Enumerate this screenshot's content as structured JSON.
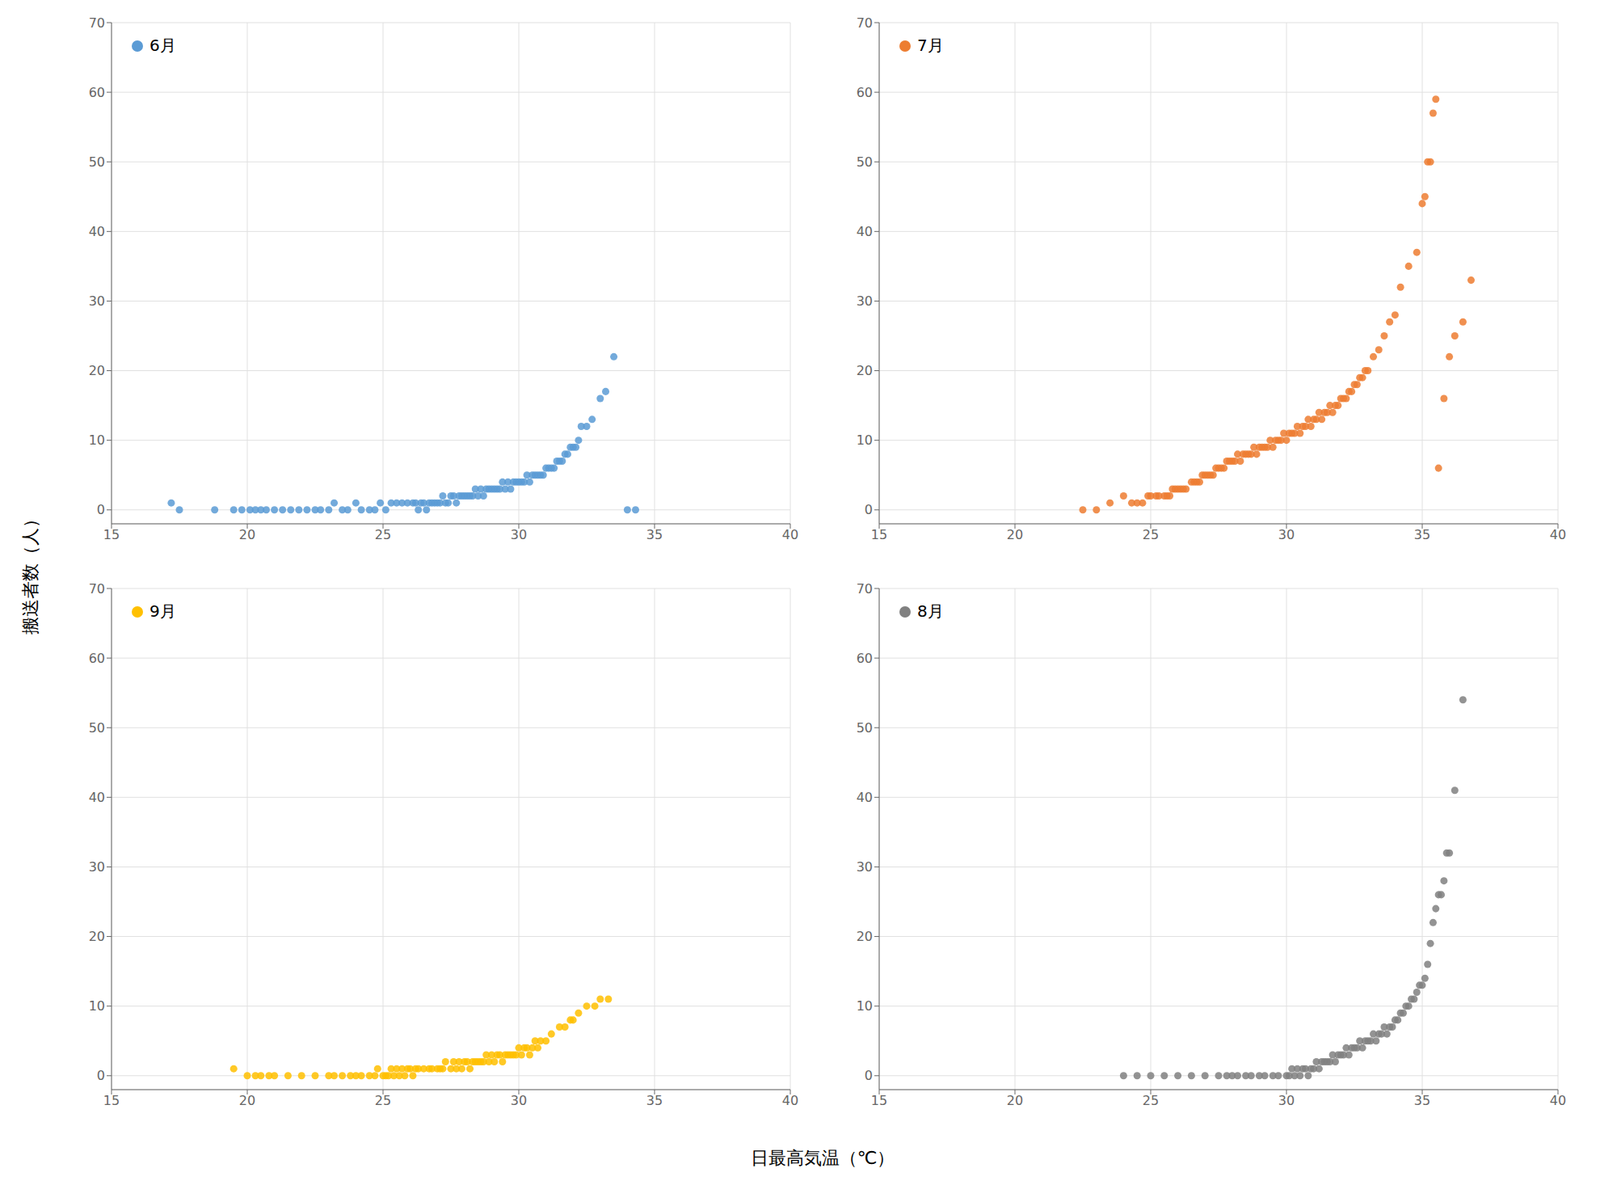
{
  "xlabel": "日最高気温（℃）",
  "ylabel": "搬送者数（人）",
  "chart_data": [
    {
      "type": "scatter",
      "xlim": [
        15,
        40
      ],
      "ylim": [
        -2,
        70
      ],
      "xticks": [
        15,
        20,
        25,
        30,
        35,
        40
      ],
      "yticks": [
        0,
        10,
        20,
        30,
        40,
        50,
        60,
        70
      ],
      "grid": true,
      "legend": "upper left",
      "series": [
        {
          "name": "6月",
          "color": "#5B9BD5",
          "x": [
            17.2,
            17.5,
            18.8,
            19.5,
            19.8,
            20.1,
            20.3,
            20.5,
            20.7,
            21.0,
            21.3,
            21.6,
            21.9,
            22.2,
            22.5,
            22.7,
            23.0,
            23.2,
            23.5,
            23.7,
            24.0,
            24.2,
            24.5,
            24.7,
            24.9,
            25.1,
            25.3,
            25.5,
            25.7,
            25.9,
            26.1,
            26.2,
            26.3,
            26.4,
            26.5,
            26.6,
            26.7,
            26.8,
            26.9,
            27.0,
            27.1,
            27.2,
            27.3,
            27.4,
            27.5,
            27.6,
            27.7,
            27.8,
            27.9,
            28.0,
            28.1,
            28.2,
            28.3,
            28.4,
            28.5,
            28.6,
            28.7,
            28.8,
            28.9,
            29.0,
            29.1,
            29.2,
            29.3,
            29.4,
            29.5,
            29.6,
            29.7,
            29.8,
            29.9,
            30.0,
            30.1,
            30.2,
            30.3,
            30.4,
            30.5,
            30.6,
            30.7,
            30.8,
            30.9,
            31.0,
            31.1,
            31.2,
            31.3,
            31.4,
            31.5,
            31.6,
            31.7,
            31.8,
            31.9,
            32.0,
            32.1,
            32.2,
            32.3,
            32.5,
            32.7,
            33.0,
            33.2,
            33.5,
            34.0,
            34.3
          ],
          "values": [
            1,
            0,
            0,
            0,
            0,
            0,
            0,
            0,
            0,
            0,
            0,
            0,
            0,
            0,
            0,
            0,
            0,
            1,
            0,
            0,
            1,
            0,
            0,
            0,
            1,
            0,
            1,
            1,
            1,
            1,
            1,
            1,
            0,
            1,
            1,
            0,
            1,
            1,
            1,
            1,
            1,
            2,
            1,
            1,
            2,
            2,
            1,
            2,
            2,
            2,
            2,
            2,
            2,
            3,
            2,
            3,
            2,
            3,
            3,
            3,
            3,
            3,
            3,
            4,
            3,
            4,
            3,
            4,
            4,
            4,
            4,
            4,
            5,
            4,
            5,
            5,
            5,
            5,
            5,
            6,
            6,
            6,
            6,
            7,
            7,
            7,
            8,
            8,
            9,
            9,
            9,
            10,
            12,
            12,
            13,
            16,
            17,
            22,
            0,
            0
          ]
        }
      ]
    },
    {
      "type": "scatter",
      "xlim": [
        15,
        40
      ],
      "ylim": [
        -2,
        70
      ],
      "xticks": [
        15,
        20,
        25,
        30,
        35,
        40
      ],
      "yticks": [
        0,
        10,
        20,
        30,
        40,
        50,
        60,
        70
      ],
      "grid": true,
      "legend": "upper left",
      "series": [
        {
          "name": "7月",
          "color": "#ED7D31",
          "x": [
            22.5,
            23.0,
            23.5,
            24.0,
            24.3,
            24.5,
            24.7,
            24.9,
            25.0,
            25.2,
            25.3,
            25.5,
            25.6,
            25.7,
            25.8,
            25.9,
            26.0,
            26.1,
            26.2,
            26.3,
            26.5,
            26.6,
            26.7,
            26.8,
            26.9,
            27.0,
            27.1,
            27.2,
            27.3,
            27.4,
            27.5,
            27.6,
            27.7,
            27.8,
            27.9,
            28.0,
            28.1,
            28.2,
            28.3,
            28.4,
            28.5,
            28.6,
            28.7,
            28.8,
            28.9,
            29.0,
            29.1,
            29.2,
            29.3,
            29.4,
            29.5,
            29.6,
            29.7,
            29.8,
            29.9,
            30.0,
            30.1,
            30.2,
            30.3,
            30.4,
            30.5,
            30.6,
            30.7,
            30.8,
            30.9,
            31.0,
            31.1,
            31.2,
            31.3,
            31.4,
            31.5,
            31.6,
            31.7,
            31.8,
            31.9,
            32.0,
            32.1,
            32.2,
            32.3,
            32.4,
            32.5,
            32.6,
            32.7,
            32.8,
            32.9,
            33.0,
            33.2,
            33.4,
            33.6,
            33.8,
            34.0,
            34.2,
            34.5,
            34.8,
            35.0,
            35.1,
            35.2,
            35.3,
            35.4,
            35.5,
            35.6,
            35.8,
            36.0,
            36.2,
            36.5,
            36.8
          ],
          "values": [
            0,
            0,
            1,
            2,
            1,
            1,
            1,
            2,
            2,
            2,
            2,
            2,
            2,
            2,
            3,
            3,
            3,
            3,
            3,
            3,
            4,
            4,
            4,
            4,
            5,
            5,
            5,
            5,
            5,
            6,
            6,
            6,
            6,
            7,
            7,
            7,
            7,
            8,
            7,
            8,
            8,
            8,
            8,
            9,
            8,
            9,
            9,
            9,
            9,
            10,
            9,
            10,
            10,
            10,
            11,
            10,
            11,
            11,
            11,
            12,
            11,
            12,
            12,
            13,
            12,
            13,
            13,
            14,
            13,
            14,
            14,
            15,
            14,
            15,
            15,
            16,
            16,
            16,
            17,
            17,
            18,
            18,
            19,
            19,
            20,
            20,
            22,
            23,
            25,
            27,
            28,
            32,
            35,
            37,
            44,
            45,
            50,
            50,
            57,
            59,
            6,
            16,
            22,
            25,
            27,
            33
          ]
        }
      ]
    },
    {
      "type": "scatter",
      "xlim": [
        15,
        40
      ],
      "ylim": [
        -2,
        70
      ],
      "xticks": [
        15,
        20,
        25,
        30,
        35,
        40
      ],
      "yticks": [
        0,
        10,
        20,
        30,
        40,
        50,
        60,
        70
      ],
      "grid": true,
      "legend": "upper left",
      "series": [
        {
          "name": "9月",
          "color": "#FFC000",
          "x": [
            19.5,
            20.0,
            20.3,
            20.5,
            20.8,
            21.0,
            21.5,
            22.0,
            22.5,
            23.0,
            23.2,
            23.5,
            23.8,
            24.0,
            24.2,
            24.5,
            24.7,
            24.8,
            25.0,
            25.1,
            25.2,
            25.3,
            25.4,
            25.5,
            25.6,
            25.7,
            25.8,
            25.9,
            26.0,
            26.1,
            26.2,
            26.3,
            26.5,
            26.7,
            26.8,
            27.0,
            27.1,
            27.2,
            27.3,
            27.5,
            27.6,
            27.7,
            27.8,
            27.9,
            28.0,
            28.1,
            28.2,
            28.3,
            28.4,
            28.5,
            28.6,
            28.7,
            28.8,
            28.9,
            29.0,
            29.1,
            29.2,
            29.3,
            29.4,
            29.5,
            29.6,
            29.7,
            29.8,
            29.9,
            30.0,
            30.1,
            30.2,
            30.3,
            30.4,
            30.5,
            30.6,
            30.7,
            30.8,
            31.0,
            31.2,
            31.5,
            31.7,
            31.9,
            32.0,
            32.2,
            32.5,
            32.8,
            33.0,
            33.3
          ],
          "values": [
            1,
            0,
            0,
            0,
            0,
            0,
            0,
            0,
            0,
            0,
            0,
            0,
            0,
            0,
            0,
            0,
            0,
            1,
            0,
            0,
            0,
            1,
            0,
            1,
            0,
            1,
            0,
            1,
            1,
            0,
            1,
            1,
            1,
            1,
            1,
            1,
            1,
            1,
            2,
            1,
            2,
            1,
            2,
            1,
            2,
            2,
            1,
            2,
            2,
            2,
            2,
            2,
            3,
            2,
            3,
            2,
            3,
            3,
            2,
            3,
            3,
            3,
            3,
            3,
            4,
            3,
            4,
            4,
            3,
            4,
            5,
            4,
            5,
            5,
            6,
            7,
            7,
            8,
            8,
            9,
            10,
            10,
            11,
            11
          ]
        }
      ]
    },
    {
      "type": "scatter",
      "xlim": [
        15,
        40
      ],
      "ylim": [
        -2,
        70
      ],
      "xticks": [
        15,
        20,
        25,
        30,
        35,
        40
      ],
      "yticks": [
        0,
        10,
        20,
        30,
        40,
        50,
        60,
        70
      ],
      "grid": true,
      "legend": "upper left",
      "series": [
        {
          "name": "8月",
          "color": "#808080",
          "x": [
            24.0,
            24.5,
            25.0,
            25.5,
            26.0,
            26.5,
            27.0,
            27.5,
            27.8,
            28.0,
            28.2,
            28.5,
            28.7,
            29.0,
            29.2,
            29.5,
            29.7,
            30.0,
            30.1,
            30.2,
            30.3,
            30.4,
            30.5,
            30.6,
            30.7,
            30.8,
            30.9,
            31.0,
            31.1,
            31.2,
            31.3,
            31.4,
            31.5,
            31.6,
            31.7,
            31.8,
            31.9,
            32.0,
            32.1,
            32.2,
            32.3,
            32.4,
            32.5,
            32.6,
            32.7,
            32.8,
            32.9,
            33.0,
            33.1,
            33.2,
            33.3,
            33.4,
            33.5,
            33.6,
            33.7,
            33.8,
            33.9,
            34.0,
            34.1,
            34.2,
            34.3,
            34.4,
            34.5,
            34.6,
            34.7,
            34.8,
            34.9,
            35.0,
            35.1,
            35.2,
            35.3,
            35.4,
            35.5,
            35.6,
            35.7,
            35.8,
            35.9,
            36.0,
            36.2,
            36.5
          ],
          "values": [
            0,
            0,
            0,
            0,
            0,
            0,
            0,
            0,
            0,
            0,
            0,
            0,
            0,
            0,
            0,
            0,
            0,
            0,
            0,
            1,
            0,
            1,
            0,
            1,
            1,
            0,
            1,
            1,
            2,
            1,
            2,
            2,
            2,
            2,
            3,
            2,
            3,
            3,
            3,
            4,
            3,
            4,
            4,
            4,
            5,
            4,
            5,
            5,
            5,
            6,
            5,
            6,
            6,
            7,
            6,
            7,
            7,
            8,
            8,
            9,
            9,
            10,
            10,
            11,
            11,
            12,
            13,
            13,
            14,
            16,
            19,
            22,
            24,
            26,
            26,
            28,
            32,
            32,
            41,
            54
          ]
        }
      ]
    }
  ]
}
